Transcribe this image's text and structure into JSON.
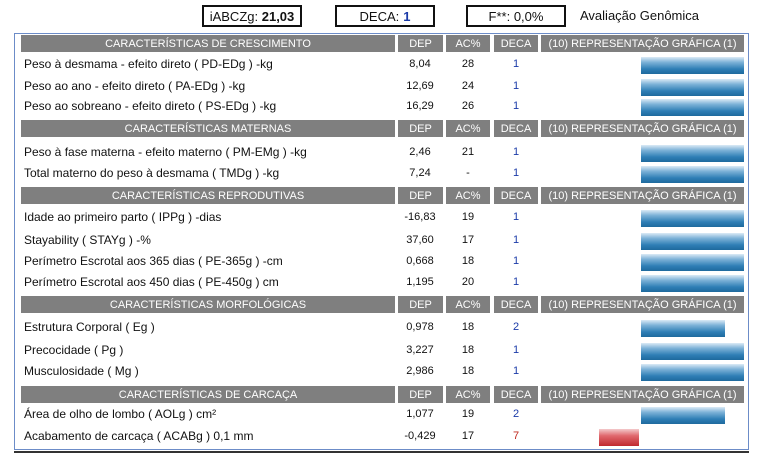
{
  "header": {
    "iabczg_label": "iABCZg:",
    "iabczg_value": "21,03",
    "deca_label": "DECA:",
    "deca_value": "1",
    "f_label": "F**:",
    "f_value": "0,0%",
    "title": "Avaliação Genômica"
  },
  "columns": {
    "dep": "DEP",
    "ac": "AC%",
    "deca": "DECA",
    "graph": "(10) REPRESENTAÇÃO GRÁFICA (1)"
  },
  "sections": [
    {
      "title": "CARACTERÍSTICAS DE CRESCIMENTO",
      "rows": [
        {
          "label": "Peso à desmama - efeito direto ( PD-EDg ) -kg",
          "dep": "8,04",
          "ac": "28",
          "deca": "1",
          "bar": "blue"
        },
        {
          "label": "Peso ao ano - efeito direto ( PA-EDg ) -kg",
          "dep": "12,69",
          "ac": "24",
          "deca": "1",
          "bar": "blue"
        },
        {
          "label": "Peso ao sobreano - efeito direto ( PS-EDg ) -kg",
          "dep": "16,29",
          "ac": "26",
          "deca": "1",
          "bar": "blue"
        }
      ]
    },
    {
      "title": "CARACTERÍSTICAS MATERNAS",
      "rows": [
        {
          "label": "Peso à fase materna - efeito materno ( PM-EMg ) -kg",
          "dep": "2,46",
          "ac": "21",
          "deca": "1",
          "bar": "blue"
        },
        {
          "label": "Total materno do peso à desmama ( TMDg ) -kg",
          "dep": "7,24",
          "ac": "-",
          "deca": "1",
          "bar": "blue"
        }
      ]
    },
    {
      "title": "CARACTERÍSTICAS REPRODUTIVAS",
      "rows": [
        {
          "label": "Idade ao primeiro parto ( IPPg ) -dias",
          "dep": "-16,83",
          "ac": "19",
          "deca": "1",
          "bar": "blue"
        },
        {
          "label": "Stayability ( STAYg ) -%",
          "dep": "37,60",
          "ac": "17",
          "deca": "1",
          "bar": "blue"
        },
        {
          "label": "Perímetro Escrotal aos 365 dias ( PE-365g ) -cm",
          "dep": "0,668",
          "ac": "18",
          "deca": "1",
          "bar": "blue"
        },
        {
          "label": "Perímetro Escrotal aos 450 dias ( PE-450g ) cm",
          "dep": "1,195",
          "ac": "20",
          "deca": "1",
          "bar": "blue"
        }
      ]
    },
    {
      "title": "CARACTERÍSTICAS MORFOLÓGICAS",
      "rows": [
        {
          "label": "Estrutura Corporal ( Eg )",
          "dep": "0,978",
          "ac": "18",
          "deca": "2",
          "bar": "blue"
        },
        {
          "label": "Precocidade ( Pg )",
          "dep": "3,227",
          "ac": "18",
          "deca": "1",
          "bar": "blue"
        },
        {
          "label": "Musculosidade ( Mg )",
          "dep": "2,986",
          "ac": "18",
          "deca": "1",
          "bar": "blue"
        }
      ]
    },
    {
      "title": "CARACTERÍSTICAS DE CARCAÇA",
      "rows": [
        {
          "label": "Área de olho de lombo ( AOLg ) cm²",
          "dep": "1,077",
          "ac": "19",
          "deca": "2",
          "bar": "blue"
        },
        {
          "label": "Acabamento de carcaça ( ACABg ) 0,1 mm",
          "dep": "-0,429",
          "ac": "17",
          "deca": "7",
          "bar": "red"
        }
      ]
    }
  ]
}
